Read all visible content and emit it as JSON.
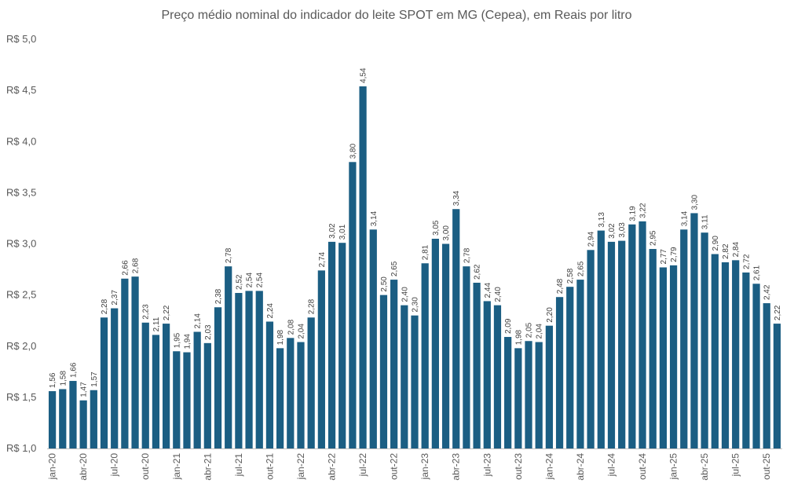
{
  "chart_data": {
    "type": "bar",
    "title": "Preço médio nominal do indicador do leite SPOT em MG (Cepea), em Reais por litro",
    "ylim": [
      1.0,
      5.0
    ],
    "ytick_values": [
      1.0,
      1.5,
      2.0,
      2.5,
      3.0,
      3.5,
      4.0,
      4.5,
      5.0
    ],
    "ytick_labels": [
      "R$ 1,0",
      "R$ 1,5",
      "R$ 2,0",
      "R$ 2,5",
      "R$ 3,0",
      "R$ 3,5",
      "R$ 4,0",
      "R$ 4,5",
      "R$ 5,0"
    ],
    "categories": [
      "jan-20",
      "fev-20",
      "mar-20",
      "abr-20",
      "mai-20",
      "jun-20",
      "jul-20",
      "ago-20",
      "set-20",
      "out-20",
      "nov-20",
      "dez-20",
      "jan-21",
      "fev-21",
      "mar-21",
      "abr-21",
      "mai-21",
      "jun-21",
      "jul-21",
      "ago-21",
      "set-21",
      "out-21",
      "nov-21",
      "dez-21",
      "jan-22",
      "fev-22",
      "mar-22",
      "abr-22",
      "mai-22",
      "jun-22",
      "jul-22",
      "ago-22",
      "set-22",
      "out-22",
      "nov-22",
      "dez-22",
      "jan-23",
      "fev-23",
      "mar-23",
      "abr-23",
      "mai-23",
      "jun-23",
      "jul-23",
      "ago-23",
      "set-23",
      "out-23",
      "nov-23",
      "dez-23",
      "jan-24",
      "fev-24",
      "mar-24",
      "abr-24",
      "mai-24",
      "jun-24",
      "jul-24",
      "ago-24",
      "set-24",
      "out-24",
      "nov-24",
      "dez-24",
      "jan-25",
      "fev-25",
      "mar-25",
      "abr-25",
      "mai-25",
      "jun-25",
      "jul-25",
      "ago-25",
      "set-25",
      "out-25",
      "nov-25"
    ],
    "values": [
      1.56,
      1.58,
      1.66,
      1.47,
      1.57,
      2.28,
      2.37,
      2.66,
      2.68,
      2.23,
      2.11,
      2.22,
      1.95,
      1.94,
      2.14,
      2.03,
      2.38,
      2.78,
      2.52,
      2.54,
      2.54,
      2.24,
      1.98,
      2.08,
      2.04,
      2.28,
      2.74,
      3.02,
      3.01,
      3.8,
      4.54,
      3.14,
      2.5,
      2.65,
      2.4,
      2.3,
      2.81,
      3.05,
      3.0,
      3.34,
      2.78,
      2.62,
      2.44,
      2.4,
      2.09,
      1.98,
      2.05,
      2.04,
      2.2,
      2.48,
      2.58,
      2.65,
      2.94,
      3.13,
      3.02,
      3.03,
      3.19,
      3.22,
      2.95,
      2.77,
      2.79,
      3.14,
      3.3,
      3.11,
      2.9,
      2.82,
      2.84,
      2.72,
      2.61,
      2.42,
      2.22
    ],
    "data_labels": [
      "1,56",
      "1,58",
      "1,66",
      "1,47",
      "1,57",
      "2,28",
      "2,37",
      "2,66",
      "2,68",
      "2,23",
      "2,11",
      "2,22",
      "1,95",
      "1,94",
      "2,14",
      "2,03",
      "2,38",
      "2,78",
      "2,52",
      "2,54",
      "2,54",
      "2,24",
      "1,98",
      "2,08",
      "2,04",
      "2,28",
      "2,74",
      "3,02",
      "3,01",
      "3,80",
      "4,54",
      "3,14",
      "2,50",
      "2,65",
      "2,40",
      "2,30",
      "2,81",
      "3,05",
      "3,00",
      "3,34",
      "2,78",
      "2,62",
      "2,44",
      "2,40",
      "2,09",
      "1,98",
      "2,05",
      "2,04",
      "2,20",
      "2,48",
      "2,58",
      "2,65",
      "2,94",
      "3,13",
      "3,02",
      "3,03",
      "3,19",
      "3,22",
      "2,95",
      "2,77",
      "2,79",
      "3,14",
      "3,30",
      "3,11",
      "2,90",
      "2,82",
      "2,84",
      "2,72",
      "2,61",
      "2,42",
      "2,22"
    ],
    "shown_tick_labels": [
      "jan-20",
      "abr-20",
      "jul-20",
      "out-20",
      "jan-21",
      "abr-21",
      "jul-21",
      "out-21",
      "jan-22",
      "abr-22",
      "jul-22",
      "out-22",
      "jan-23",
      "abr-23",
      "jul-23",
      "out-23",
      "jan-24",
      "abr-24",
      "jul-24",
      "out-24",
      "jan-25",
      "abr-25",
      "jul-25",
      "out-25"
    ],
    "bar_color": "#1b5e83",
    "grid": false,
    "legend": "none"
  }
}
